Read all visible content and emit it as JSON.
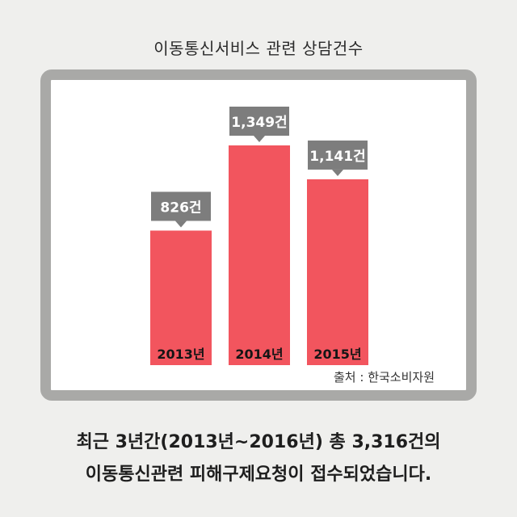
{
  "chart_data": {
    "type": "bar",
    "title": "이동통신서비스 관련 상담건수",
    "categories": [
      "2013년",
      "2014년",
      "2015년"
    ],
    "values": [
      826,
      1349,
      1141
    ],
    "data_labels": [
      "826건",
      "1,349건",
      "1,141건"
    ],
    "xlabel": "",
    "ylabel": "",
    "grid": false,
    "bar_color": "#f2555e",
    "label_box_color": "#7d7d7d"
  },
  "source": "출처 : 한국소비자원",
  "caption": {
    "line1": "최근 3년간(2013년~2016년) 총 3,316건의",
    "line2": "이동통신관련 피해구제요청이 접수되었습니다."
  },
  "colors": {
    "background": "#efefed",
    "frame": "#a9a9a7",
    "panel": "#ffffff"
  }
}
